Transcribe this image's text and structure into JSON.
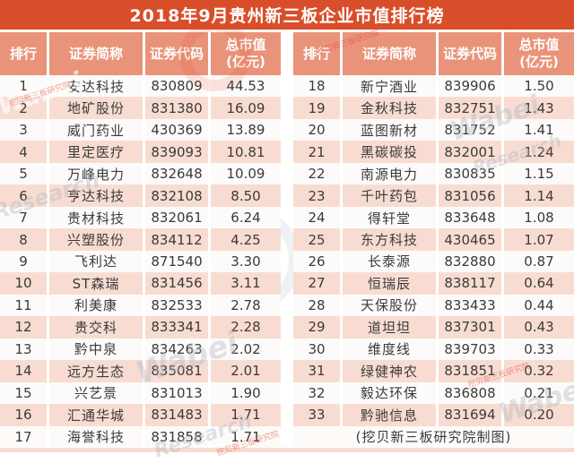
{
  "title": "2018年9月贵州新三板企业市值排行榜",
  "table": {
    "headers": [
      "排行",
      "证券简称",
      "证券代码",
      "总市值\n(亿元)"
    ],
    "footer_note": "(挖贝新三板研究院制图)"
  },
  "chart_data": {
    "type": "table",
    "title": "2018年9月贵州新三板企业市值排行榜",
    "columns": [
      "排行",
      "证券简称",
      "证券代码",
      "总市值(亿元)"
    ],
    "rows": [
      [
        "1",
        "安达科技",
        "830809",
        "44.53"
      ],
      [
        "2",
        "地矿股份",
        "831380",
        "16.09"
      ],
      [
        "3",
        "威门药业",
        "430369",
        "13.89"
      ],
      [
        "4",
        "里定医疗",
        "839093",
        "10.81"
      ],
      [
        "5",
        "万峰电力",
        "832648",
        "10.09"
      ],
      [
        "6",
        "亨达科技",
        "832108",
        "8.50"
      ],
      [
        "7",
        "贵材科技",
        "832061",
        "6.24"
      ],
      [
        "8",
        "兴塑股份",
        "834112",
        "4.25"
      ],
      [
        "9",
        "飞利达",
        "871540",
        "3.30"
      ],
      [
        "10",
        "ST森瑞",
        "831456",
        "3.11"
      ],
      [
        "11",
        "利美康",
        "832533",
        "2.78"
      ],
      [
        "12",
        "贵交科",
        "833341",
        "2.28"
      ],
      [
        "13",
        "黔中泉",
        "834263",
        "2.02"
      ],
      [
        "14",
        "远方生态",
        "835081",
        "2.01"
      ],
      [
        "15",
        "兴艺景",
        "831013",
        "1.90"
      ],
      [
        "16",
        "汇通华城",
        "831483",
        "1.71"
      ],
      [
        "17",
        "海誉科技",
        "831858",
        "1.71"
      ],
      [
        "18",
        "新宁酒业",
        "839906",
        "1.50"
      ],
      [
        "19",
        "金秋科技",
        "832751",
        "1.43"
      ],
      [
        "20",
        "蓝图新材",
        "831752",
        "1.41"
      ],
      [
        "21",
        "黑碳碳投",
        "832001",
        "1.24"
      ],
      [
        "22",
        "南源电力",
        "830835",
        "1.15"
      ],
      [
        "23",
        "千叶药包",
        "831056",
        "1.14"
      ],
      [
        "24",
        "得轩堂",
        "833648",
        "1.08"
      ],
      [
        "25",
        "东方科技",
        "430465",
        "1.07"
      ],
      [
        "26",
        "长泰源",
        "832880",
        "0.87"
      ],
      [
        "27",
        "恒瑞辰",
        "838117",
        "0.64"
      ],
      [
        "28",
        "天保股份",
        "833433",
        "0.44"
      ],
      [
        "29",
        "道坦坦",
        "837301",
        "0.43"
      ],
      [
        "30",
        "维度线",
        "839703",
        "0.33"
      ],
      [
        "31",
        "绿健神农",
        "831851",
        "0.32"
      ],
      [
        "32",
        "毅达环保",
        "836808",
        "0.21"
      ],
      [
        "33",
        "黔驰信息",
        "831694",
        "0.20"
      ]
    ],
    "note": "(挖贝新三板研究院制图)"
  },
  "watermarks": {
    "brand_word1": "Wabei",
    "brand_word2": "Research",
    "stamp_text": "挖贝新三板研究院"
  },
  "colors": {
    "title_bg": "#d94e2a",
    "header_bg": "#e9947a",
    "row_alt_bg": "#f8dcd2",
    "row_bg": "#fdfbfa",
    "text": "#3a3a3a",
    "title_text": "#ffffff"
  }
}
